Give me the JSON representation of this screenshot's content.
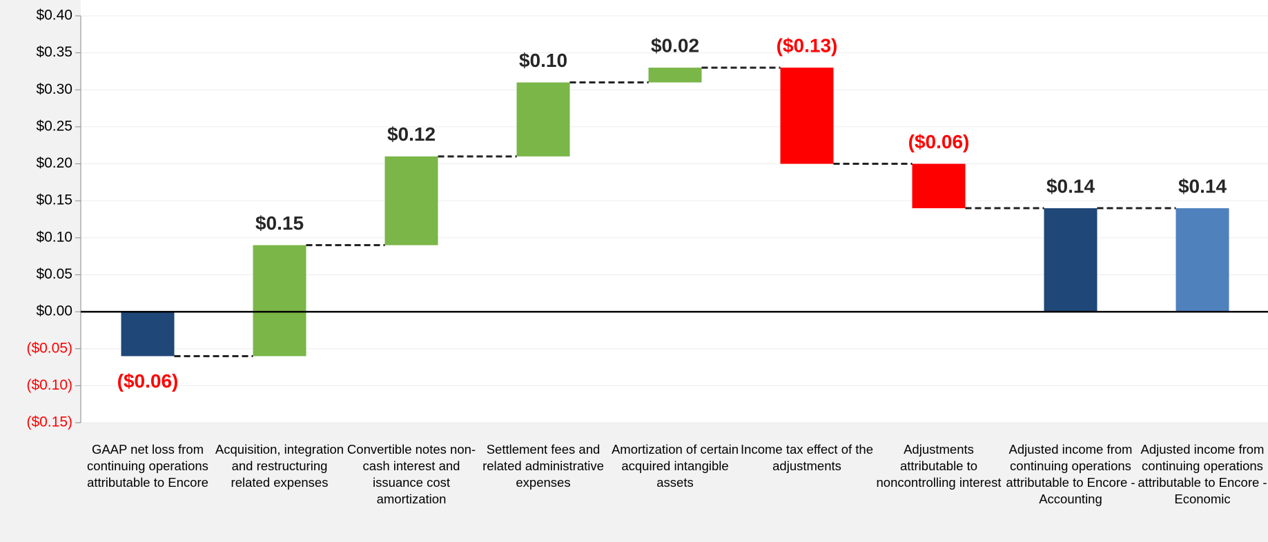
{
  "chart_data": {
    "type": "waterfall",
    "categories": [
      "GAAP net loss from continuing operations attributable to Encore",
      "Acquisition, integration and restructuring related expenses",
      "Convertible notes non-cash interest and issuance cost amortization",
      "Settlement fees and related administrative expenses",
      "Amortization of certain acquired intangible assets",
      "Income tax effect of the adjustments",
      "Adjustments attributable to noncontrolling interest",
      "Adjusted income from continuing operations attributable to Encore - Accounting",
      "Adjusted income from continuing operations attributable to Encore - Economic"
    ],
    "measure": [
      "absolute",
      "relative",
      "relative",
      "relative",
      "relative",
      "relative",
      "relative",
      "total",
      "total"
    ],
    "values": [
      -0.06,
      0.15,
      0.12,
      0.1,
      0.02,
      -0.13,
      -0.06,
      0.14,
      0.14
    ],
    "value_labels": [
      "($0.06)",
      "$0.15",
      "$0.12",
      "$0.10",
      "$0.02",
      "($0.13)",
      "($0.06)",
      "$0.14",
      "$0.14"
    ],
    "colors": [
      "#1f4777",
      "#7ab648",
      "#7ab648",
      "#7ab648",
      "#7ab648",
      "#ff0000",
      "#ff0000",
      "#1f4777",
      "#4f81bd"
    ],
    "ylim": [
      -0.15,
      0.4
    ],
    "yticks": [
      {
        "value": -0.15,
        "label": "($0.15)"
      },
      {
        "value": -0.1,
        "label": "($0.10)"
      },
      {
        "value": -0.05,
        "label": "($0.05)"
      },
      {
        "value": 0,
        "label": "$0.00"
      },
      {
        "value": 0.05,
        "label": "$0.05"
      },
      {
        "value": 0.1,
        "label": "$0.10"
      },
      {
        "value": 0.15,
        "label": "$0.15"
      },
      {
        "value": 0.2,
        "label": "$0.20"
      },
      {
        "value": 0.25,
        "label": "$0.25"
      },
      {
        "value": 0.3,
        "label": "$0.30"
      },
      {
        "value": 0.35,
        "label": "$0.35"
      },
      {
        "value": 0.4,
        "label": "$0.40"
      }
    ],
    "grid": true
  }
}
